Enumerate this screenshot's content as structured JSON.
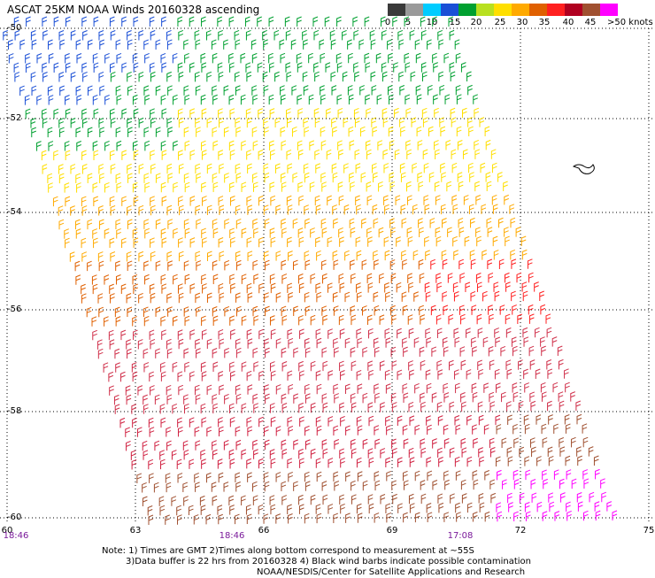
{
  "title": "ASCAT 25KM NOAA Winds 20160328 ascending",
  "colorbar": {
    "labels": [
      "0",
      "5",
      "10",
      "15",
      "20",
      "25",
      "30",
      "35",
      "40",
      "45",
      ">50 knots"
    ],
    "colors": [
      "#3a3a3a",
      "#9a9a9a",
      "#00ccff",
      "#1a4fd6",
      "#00a030",
      "#b8e020",
      "#ffdf00",
      "#ffaa00",
      "#e06000",
      "#ff2020",
      "#b00020",
      "#a05030",
      "#ff00ff",
      "#c000c0",
      "#5500aa"
    ]
  },
  "axes": {
    "lat_labels": [
      "-50",
      "-52",
      "-54",
      "-56",
      "-58",
      "-60"
    ],
    "lon_labels": [
      "60",
      "63",
      "66",
      "69",
      "72",
      "75"
    ]
  },
  "times": [
    "18:46",
    "18:46",
    "17:08"
  ],
  "notes": [
    "Note: 1) Times are GMT 2)Times along bottom correspond to measurement at ~55S",
    "3)Data buffer is 22 hrs from 20160328 4) Black wind barbs indicate possible contamination",
    "NOAA/NESDIS/Center for Satellite Applications and Research"
  ]
}
